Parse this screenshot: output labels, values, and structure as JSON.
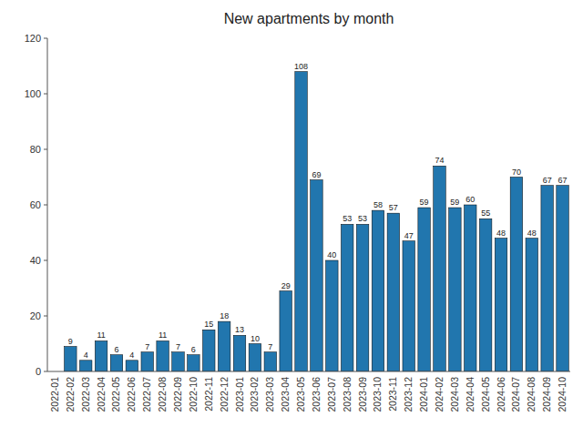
{
  "chart_data": {
    "type": "bar",
    "title": "New apartments by month",
    "categories": [
      "2022-01",
      "2022-02",
      "2022-03",
      "2022-04",
      "2022-05",
      "2022-06",
      "2022-07",
      "2022-08",
      "2022-09",
      "2022-10",
      "2022-11",
      "2022-12",
      "2023-01",
      "2023-02",
      "2023-03",
      "2023-04",
      "2023-05",
      "2023-06",
      "2023-07",
      "2023-08",
      "2023-09",
      "2023-10",
      "2023-11",
      "2023-12",
      "2024-01",
      "2024-02",
      "2024-03",
      "2024-04",
      "2024-05",
      "2024-06",
      "2024-07",
      "2024-08",
      "2024-09",
      "2024-10"
    ],
    "values": [
      0,
      9,
      4,
      11,
      6,
      4,
      7,
      11,
      7,
      6,
      15,
      18,
      13,
      10,
      7,
      29,
      108,
      69,
      40,
      53,
      53,
      58,
      57,
      47,
      59,
      74,
      59,
      60,
      55,
      48,
      70,
      48,
      67,
      67
    ],
    "color": "#2176ae",
    "ylim": [
      0,
      120
    ],
    "yticks": [
      0,
      20,
      40,
      60,
      80,
      100,
      120
    ],
    "grid": false,
    "data_labels": true
  }
}
